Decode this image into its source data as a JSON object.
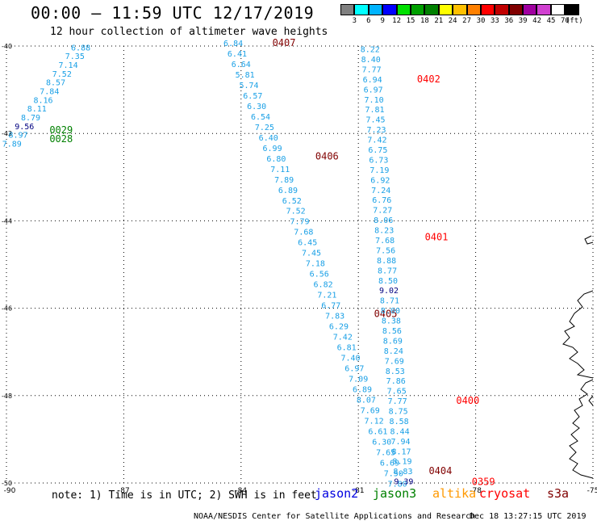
{
  "header": {
    "title": "00:00 – 11:59 UTC 12/17/2019",
    "subtitle": "12 hour collection of altimeter wave heights"
  },
  "color_scale": {
    "labels": [
      "3",
      "6",
      "9",
      "12",
      "15",
      "18",
      "21",
      "24",
      "27",
      "30",
      "33",
      "36",
      "39",
      "42",
      "45",
      "70",
      "(ft)"
    ],
    "colors": [
      "#808080",
      "#00ffff",
      "#00b4ff",
      "#0000ff",
      "#00e000",
      "#00a000",
      "#008000",
      "#ffff00",
      "#ffc000",
      "#ff8000",
      "#ff0000",
      "#c00000",
      "#800000",
      "#a000a0",
      "#d040d0",
      "#ffffff",
      "#000000"
    ]
  },
  "chart_data": {
    "type": "scatter",
    "xlim": [
      -90,
      -75
    ],
    "ylim": [
      -50,
      -40
    ],
    "x_ticks": [
      "-90",
      "-87",
      "-84",
      "-81",
      "-78",
      "-75"
    ],
    "y_ticks": [
      "-40",
      "-42",
      "-44",
      "-46",
      "-48",
      "-50"
    ],
    "grid": true,
    "colors": {
      "swh_light": "#1aa0e6",
      "swh_dark": "#000080",
      "time_red": "#ff0000",
      "time_darkred": "#800000",
      "time_green": "#008000",
      "coast": "#000000"
    },
    "tracks": [
      {
        "swh": [
          "6.88",
          "7.35",
          "7.14",
          "7.52",
          "8.57",
          "7.84",
          "8.16",
          "8.11",
          "8.79",
          "9.56",
          "8.97",
          "7.89"
        ],
        "lon": [
          -88.1,
          -88.25,
          -88.42,
          -88.58,
          -88.74,
          -88.9,
          -89.06,
          -89.22,
          -89.38,
          -89.54,
          -89.7,
          -89.86
        ],
        "lat": [
          -40.1,
          -40.3,
          -40.5,
          -40.7,
          -40.9,
          -41.1,
          -41.3,
          -41.5,
          -41.7,
          -41.9,
          -42.1,
          -42.3
        ],
        "dark_index": [
          9
        ],
        "times": [
          {
            "label": "0029",
            "lon": -88.9,
            "lat": -42.0,
            "color": "time_green"
          },
          {
            "label": "0028",
            "lon": -88.9,
            "lat": -42.2,
            "color": "time_green"
          }
        ]
      },
      {
        "swh": [
          "6.84",
          "6.41",
          "6.64",
          "5.81",
          "5.74",
          "6.57",
          "6.30",
          "6.54",
          "7.25",
          "6.40",
          "6.99",
          "6.80",
          "7.11",
          "7.89",
          "6.89",
          "6.52",
          "7.52",
          "7.79",
          "7.68",
          "6.45",
          "7.45",
          "7.18",
          "6.56",
          "6.82",
          "7.21",
          "6.77",
          "7.83",
          "6.29",
          "7.42",
          "6.81",
          "7.40",
          "6.97",
          "7.09",
          "6.89",
          "8.07",
          "7.69",
          "7.12",
          "6.61",
          "6.30",
          "7.65",
          "6.69",
          "7.50",
          "7.80"
        ],
        "lon": [
          -84.2,
          -84.1,
          -84.0,
          -83.9,
          -83.8,
          -83.7,
          -83.6,
          -83.5,
          -83.4,
          -83.3,
          -83.2,
          -83.1,
          -83.0,
          -82.9,
          -82.8,
          -82.7,
          -82.6,
          -82.5,
          -82.4,
          -82.3,
          -82.2,
          -82.1,
          -82.0,
          -81.9,
          -81.8,
          -81.7,
          -81.6,
          -81.5,
          -81.4,
          -81.3,
          -81.2,
          -81.1,
          -81.0,
          -80.9,
          -80.8,
          -80.7,
          -80.6,
          -80.5,
          -80.4,
          -80.3,
          -80.2,
          -80.1,
          -80.0
        ],
        "lat": [
          -40.0,
          -40.24,
          -40.48,
          -40.72,
          -40.96,
          -41.2,
          -41.44,
          -41.68,
          -41.92,
          -42.16,
          -42.4,
          -42.64,
          -42.88,
          -43.12,
          -43.36,
          -43.6,
          -43.84,
          -44.08,
          -44.32,
          -44.56,
          -44.8,
          -45.04,
          -45.28,
          -45.52,
          -45.76,
          -46.0,
          -46.24,
          -46.48,
          -46.72,
          -46.96,
          -47.2,
          -47.44,
          -47.68,
          -47.92,
          -48.16,
          -48.4,
          -48.64,
          -48.88,
          -49.12,
          -49.36,
          -49.6,
          -49.84,
          -50.08
        ],
        "dark_index": [],
        "times": [
          {
            "label": "0407",
            "lon": -83.2,
            "lat": -40.0,
            "color": "time_darkred"
          },
          {
            "label": "0406",
            "lon": -82.1,
            "lat": -42.6,
            "color": "time_darkred"
          },
          {
            "label": "0405",
            "lon": -80.6,
            "lat": -46.2,
            "color": "time_darkred"
          },
          {
            "label": "0404",
            "lon": -79.2,
            "lat": -49.8,
            "color": "time_darkred"
          }
        ]
      },
      {
        "swh": [
          "8.22",
          "8.40",
          "7.77",
          "6.94",
          "6.97",
          "7.10",
          "7.81",
          "7.45",
          "7.23",
          "7.42",
          "6.75",
          "6.73",
          "7.19",
          "6.92",
          "7.24",
          "6.76",
          "7.27",
          "8.06",
          "8.23",
          "7.68",
          "7.56",
          "8.88",
          "8.77",
          "8.50",
          "9.02",
          "8.71",
          "8.00",
          "8.38",
          "8.56",
          "8.69",
          "8.24",
          "7.69",
          "8.53",
          "7.86",
          "7.65",
          "7.77",
          "8.75",
          "8.58",
          "8.44",
          "7.94",
          "8.17",
          "8.19",
          "8.83",
          "9.39"
        ],
        "lon": [
          -80.7,
          -80.68,
          -80.66,
          -80.64,
          -80.62,
          -80.6,
          -80.58,
          -80.56,
          -80.54,
          -80.52,
          -80.5,
          -80.48,
          -80.46,
          -80.44,
          -80.42,
          -80.4,
          -80.38,
          -80.36,
          -80.34,
          -80.32,
          -80.3,
          -80.28,
          -80.26,
          -80.24,
          -80.22,
          -80.2,
          -80.18,
          -80.16,
          -80.14,
          -80.12,
          -80.1,
          -80.08,
          -80.06,
          -80.04,
          -80.02,
          -80.0,
          -79.98,
          -79.96,
          -79.94,
          -79.92,
          -79.9,
          -79.88,
          -79.86,
          -79.84
        ],
        "lat": [
          -40.14,
          -40.37,
          -40.6,
          -40.83,
          -41.06,
          -41.29,
          -41.52,
          -41.75,
          -41.98,
          -42.21,
          -42.44,
          -42.67,
          -42.9,
          -43.13,
          -43.36,
          -43.59,
          -43.82,
          -44.05,
          -44.28,
          -44.51,
          -44.74,
          -44.97,
          -45.2,
          -45.43,
          -45.66,
          -45.89,
          -46.12,
          -46.35,
          -46.58,
          -46.81,
          -47.04,
          -47.27,
          -47.5,
          -47.73,
          -47.96,
          -48.19,
          -48.42,
          -48.65,
          -48.88,
          -49.11,
          -49.34,
          -49.57,
          -49.8,
          -50.03
        ],
        "dark_index": [
          24,
          43
        ],
        "times": [
          {
            "label": "0402",
            "lon": -79.5,
            "lat": -40.83,
            "color": "time_red"
          },
          {
            "label": "0401",
            "lon": -79.3,
            "lat": -44.45,
            "color": "time_red"
          },
          {
            "label": "0400",
            "lon": -78.5,
            "lat": -48.19,
            "color": "time_red"
          },
          {
            "label": "0359",
            "lon": -78.1,
            "lat": -50.05,
            "color": "time_red"
          }
        ]
      }
    ]
  },
  "footer": {
    "note": "note: 1) Time is in UTC; 2) SWH is in feet",
    "missions": [
      {
        "label": "jason2",
        "color": "#0000e0"
      },
      {
        "label": "jason3",
        "color": "#008000"
      },
      {
        "label": "altika",
        "color": "#ff9900"
      },
      {
        "label": "cryosat",
        "color": "#ff0000"
      },
      {
        "label": "s3a",
        "color": "#800000"
      }
    ],
    "credit": "NOAA/NESDIS Center for Satellite Applications and Research",
    "timestamp": "Dec 18 13:27:15 UTC 2019"
  }
}
